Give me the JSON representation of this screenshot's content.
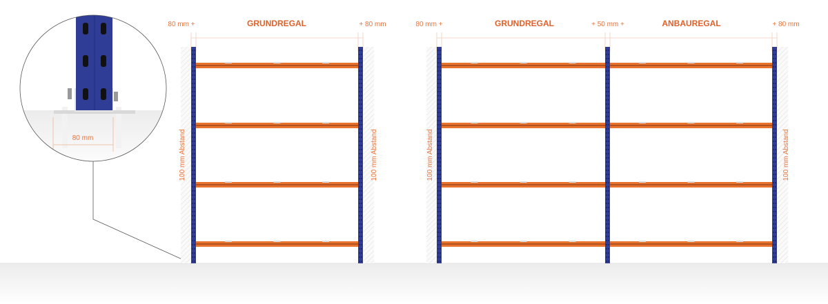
{
  "colors": {
    "upright": "#2f3d96",
    "beam": "#e8732f",
    "label": "#e8733a",
    "title": "#e0602a"
  },
  "detail": {
    "width_label": "80 mm"
  },
  "left_rack": {
    "left_margin": "80 mm +",
    "title": "GRUNDREGAL",
    "right_margin": "+ 80 mm",
    "left_distance": "100 mm Abstand",
    "right_distance": "100 mm Abstand"
  },
  "right_rack": {
    "left_margin": "80 mm +",
    "title_base": "GRUNDREGAL",
    "middle_gap": "+ 50 mm +",
    "title_extension": "ANBAUREGAL",
    "right_margin": "+ 80 mm",
    "left_distance": "100 mm Abstand",
    "right_distance": "100 mm Abstand"
  }
}
